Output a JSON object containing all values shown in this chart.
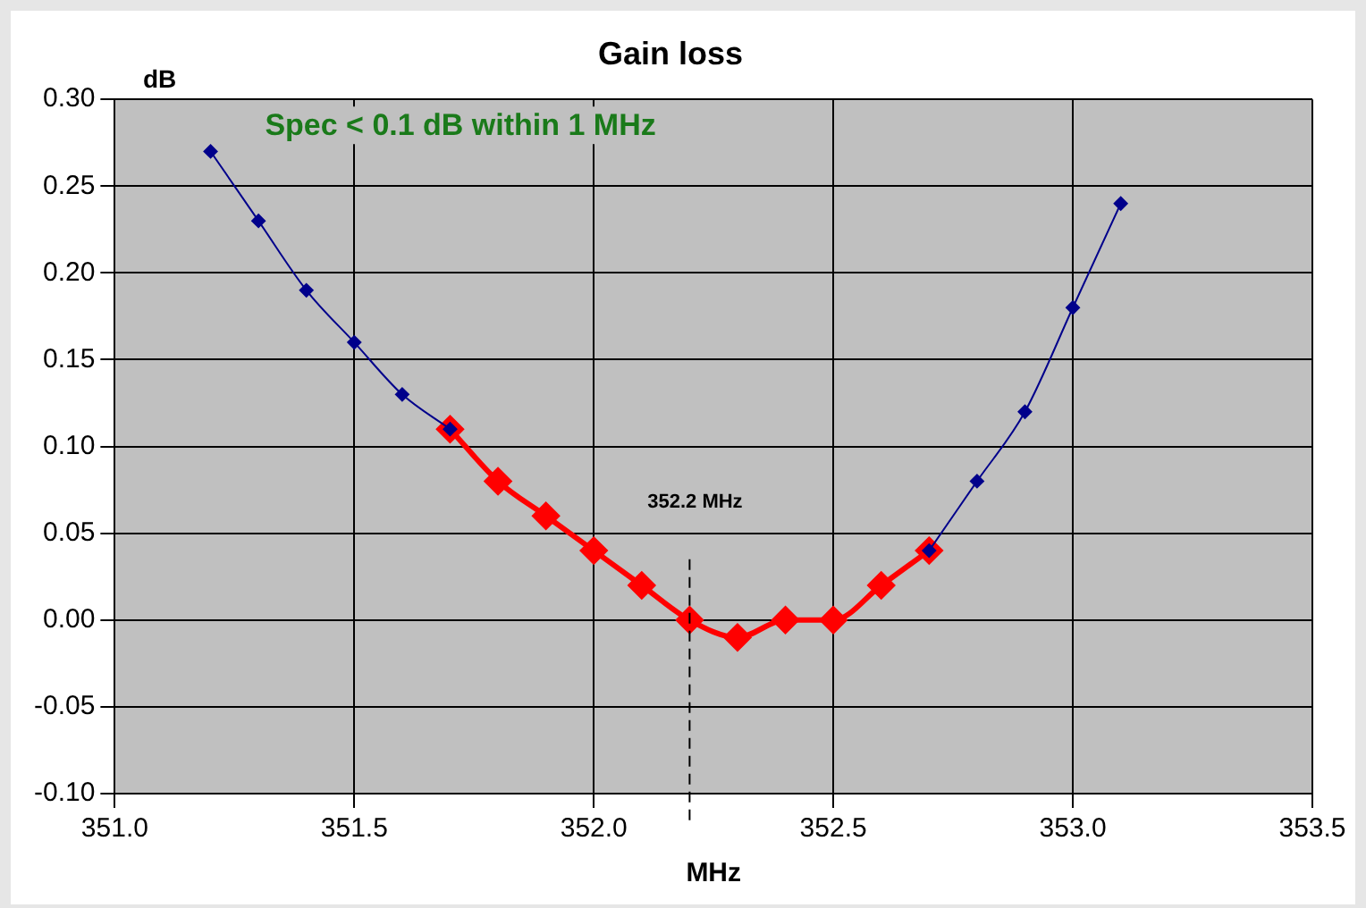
{
  "chart_data": {
    "type": "line",
    "title": "Gain loss",
    "xlabel": "MHz",
    "ylabel": "dB",
    "xlim": [
      351.0,
      353.5
    ],
    "xticks": [
      {
        "value": 351.0,
        "label": "351.0"
      },
      {
        "value": 351.5,
        "label": "351.5"
      },
      {
        "value": 352.0,
        "label": "352.0"
      },
      {
        "value": 352.5,
        "label": "352.5"
      },
      {
        "value": 353.0,
        "label": "353.0"
      },
      {
        "value": 353.5,
        "label": "353.5"
      }
    ],
    "ylim": [
      -0.1,
      0.3
    ],
    "yticks": [
      {
        "value": -0.1,
        "label": "-0.10"
      },
      {
        "value": -0.05,
        "label": "-0.05"
      },
      {
        "value": 0,
        "label": "0.00"
      },
      {
        "value": 0.05,
        "label": "0.05"
      },
      {
        "value": 0.1,
        "label": "0.10"
      },
      {
        "value": 0.15,
        "label": "0.15"
      },
      {
        "value": 0.2,
        "label": "0.20"
      },
      {
        "value": 0.25,
        "label": "0.25"
      },
      {
        "value": 0.3,
        "label": "0.30"
      }
    ],
    "series": [
      {
        "color": "#00008b",
        "x": [
          351.2,
          351.3,
          351.4,
          351.5,
          351.6,
          351.7
        ],
        "values": [
          0.27,
          0.23,
          0.19,
          0.16,
          0.13,
          0.11
        ]
      },
      {
        "color": "#00008b",
        "x": [
          352.7,
          352.8,
          352.9,
          353.0,
          353.1
        ],
        "values": [
          0.04,
          0.08,
          0.12,
          0.18,
          0.24
        ]
      },
      {
        "color": "#ff0000",
        "x": [
          351.7,
          351.8,
          351.9,
          352.0,
          352.1,
          352.2,
          352.3,
          352.4,
          352.5,
          352.6,
          352.7
        ],
        "values": [
          0.11,
          0.08,
          0.06,
          0.04,
          0.02,
          0.0,
          -0.01,
          0.0,
          0.0,
          0.02,
          0.04
        ]
      }
    ],
    "ref_lines": [
      {
        "axis": "x",
        "value": 352.2,
        "label": "352.2 MHz",
        "color": "#000000",
        "line_style": "dashed"
      }
    ],
    "annotations": [
      "Spec < 0.1 dB within 1 MHz"
    ],
    "grid": true,
    "legend": false,
    "marker": "diamond",
    "line_style": "solid"
  }
}
